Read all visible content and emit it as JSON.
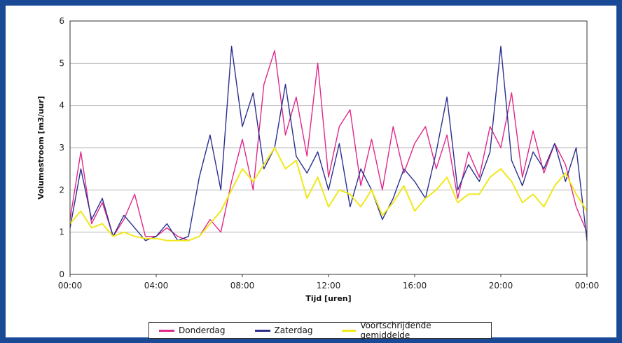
{
  "chart_data": {
    "type": "line",
    "title": "",
    "xlabel": "Tijd [uren]",
    "ylabel": "Volumestroom [m3/uur]",
    "ylim": [
      0,
      6
    ],
    "xlim": [
      0,
      24
    ],
    "x_ticks": [
      "00:00",
      "04:00",
      "08:00",
      "12:00",
      "16:00",
      "20:00",
      "00:00"
    ],
    "y_ticks": [
      "0",
      "1",
      "2",
      "3",
      "4",
      "5",
      "6"
    ],
    "grid": "horizontal",
    "legend_position": "bottom",
    "series": [
      {
        "name": "Donderdag",
        "color": "#e0288a",
        "x": [
          0,
          0.5,
          1,
          1.5,
          2,
          2.5,
          3,
          3.5,
          4,
          4.5,
          5,
          5.5,
          6,
          6.5,
          7,
          7.5,
          8,
          8.5,
          9,
          9.5,
          10,
          10.5,
          11,
          11.5,
          12,
          12.5,
          13,
          13.5,
          14,
          14.5,
          15,
          15.5,
          16,
          16.5,
          17,
          17.5,
          18,
          18.5,
          19,
          19.5,
          20,
          20.5,
          21,
          21.5,
          22,
          22.5,
          23,
          23.5,
          24
        ],
        "values": [
          1.3,
          2.9,
          1.2,
          1.7,
          0.9,
          1.3,
          1.9,
          0.9,
          0.9,
          1.1,
          0.9,
          0.8,
          0.9,
          1.3,
          1.0,
          2.2,
          3.2,
          2.0,
          4.5,
          5.3,
          3.3,
          4.2,
          2.8,
          5.0,
          2.3,
          3.5,
          3.9,
          2.1,
          3.2,
          2.0,
          3.5,
          2.4,
          3.1,
          3.5,
          2.5,
          3.3,
          1.8,
          2.9,
          2.3,
          3.5,
          3.0,
          4.3,
          2.3,
          3.4,
          2.4,
          3.1,
          2.6,
          1.6,
          1.0
        ]
      },
      {
        "name": "Zaterdag",
        "color": "#2a2f8f",
        "x": [
          0,
          0.5,
          1,
          1.5,
          2,
          2.5,
          3,
          3.5,
          4,
          4.5,
          5,
          5.5,
          6,
          6.5,
          7,
          7.5,
          8,
          8.5,
          9,
          9.5,
          10,
          10.5,
          11,
          11.5,
          12,
          12.5,
          13,
          13.5,
          14,
          14.5,
          15,
          15.5,
          16,
          16.5,
          17,
          17.5,
          18,
          18.5,
          19,
          19.5,
          20,
          20.5,
          21,
          21.5,
          22,
          22.5,
          23,
          23.5,
          24
        ],
        "values": [
          1.1,
          2.5,
          1.3,
          1.8,
          0.9,
          1.4,
          1.1,
          0.8,
          0.9,
          1.2,
          0.8,
          0.9,
          2.3,
          3.3,
          2.0,
          5.4,
          3.5,
          4.3,
          2.5,
          3.0,
          4.5,
          2.8,
          2.4,
          2.9,
          2.0,
          3.1,
          1.6,
          2.5,
          2.0,
          1.3,
          1.8,
          2.5,
          2.2,
          1.8,
          2.9,
          4.2,
          2.0,
          2.6,
          2.2,
          2.9,
          5.4,
          2.7,
          2.1,
          2.9,
          2.5,
          3.1,
          2.2,
          3.0,
          0.8
        ]
      },
      {
        "name": "Voortschrijdende gemiddelde",
        "color": "#f0e81a",
        "x": [
          0,
          0.5,
          1,
          1.5,
          2,
          2.5,
          3,
          3.5,
          4,
          4.5,
          5,
          5.5,
          6,
          6.5,
          7,
          7.5,
          8,
          8.5,
          9,
          9.5,
          10,
          10.5,
          11,
          11.5,
          12,
          12.5,
          13,
          13.5,
          14,
          14.5,
          15,
          15.5,
          16,
          16.5,
          17,
          17.5,
          18,
          18.5,
          19,
          19.5,
          20,
          20.5,
          21,
          21.5,
          22,
          22.5,
          23,
          23.5,
          24
        ],
        "values": [
          1.2,
          1.5,
          1.1,
          1.2,
          0.9,
          1.0,
          0.9,
          0.85,
          0.85,
          0.8,
          0.8,
          0.8,
          0.9,
          1.2,
          1.5,
          2.0,
          2.5,
          2.2,
          2.6,
          3.0,
          2.5,
          2.7,
          1.8,
          2.3,
          1.6,
          2.0,
          1.9,
          1.6,
          2.0,
          1.4,
          1.7,
          2.1,
          1.5,
          1.8,
          2.0,
          2.3,
          1.7,
          1.9,
          1.9,
          2.3,
          2.5,
          2.2,
          1.7,
          1.9,
          1.6,
          2.1,
          2.4,
          1.9,
          1.5
        ]
      }
    ]
  }
}
